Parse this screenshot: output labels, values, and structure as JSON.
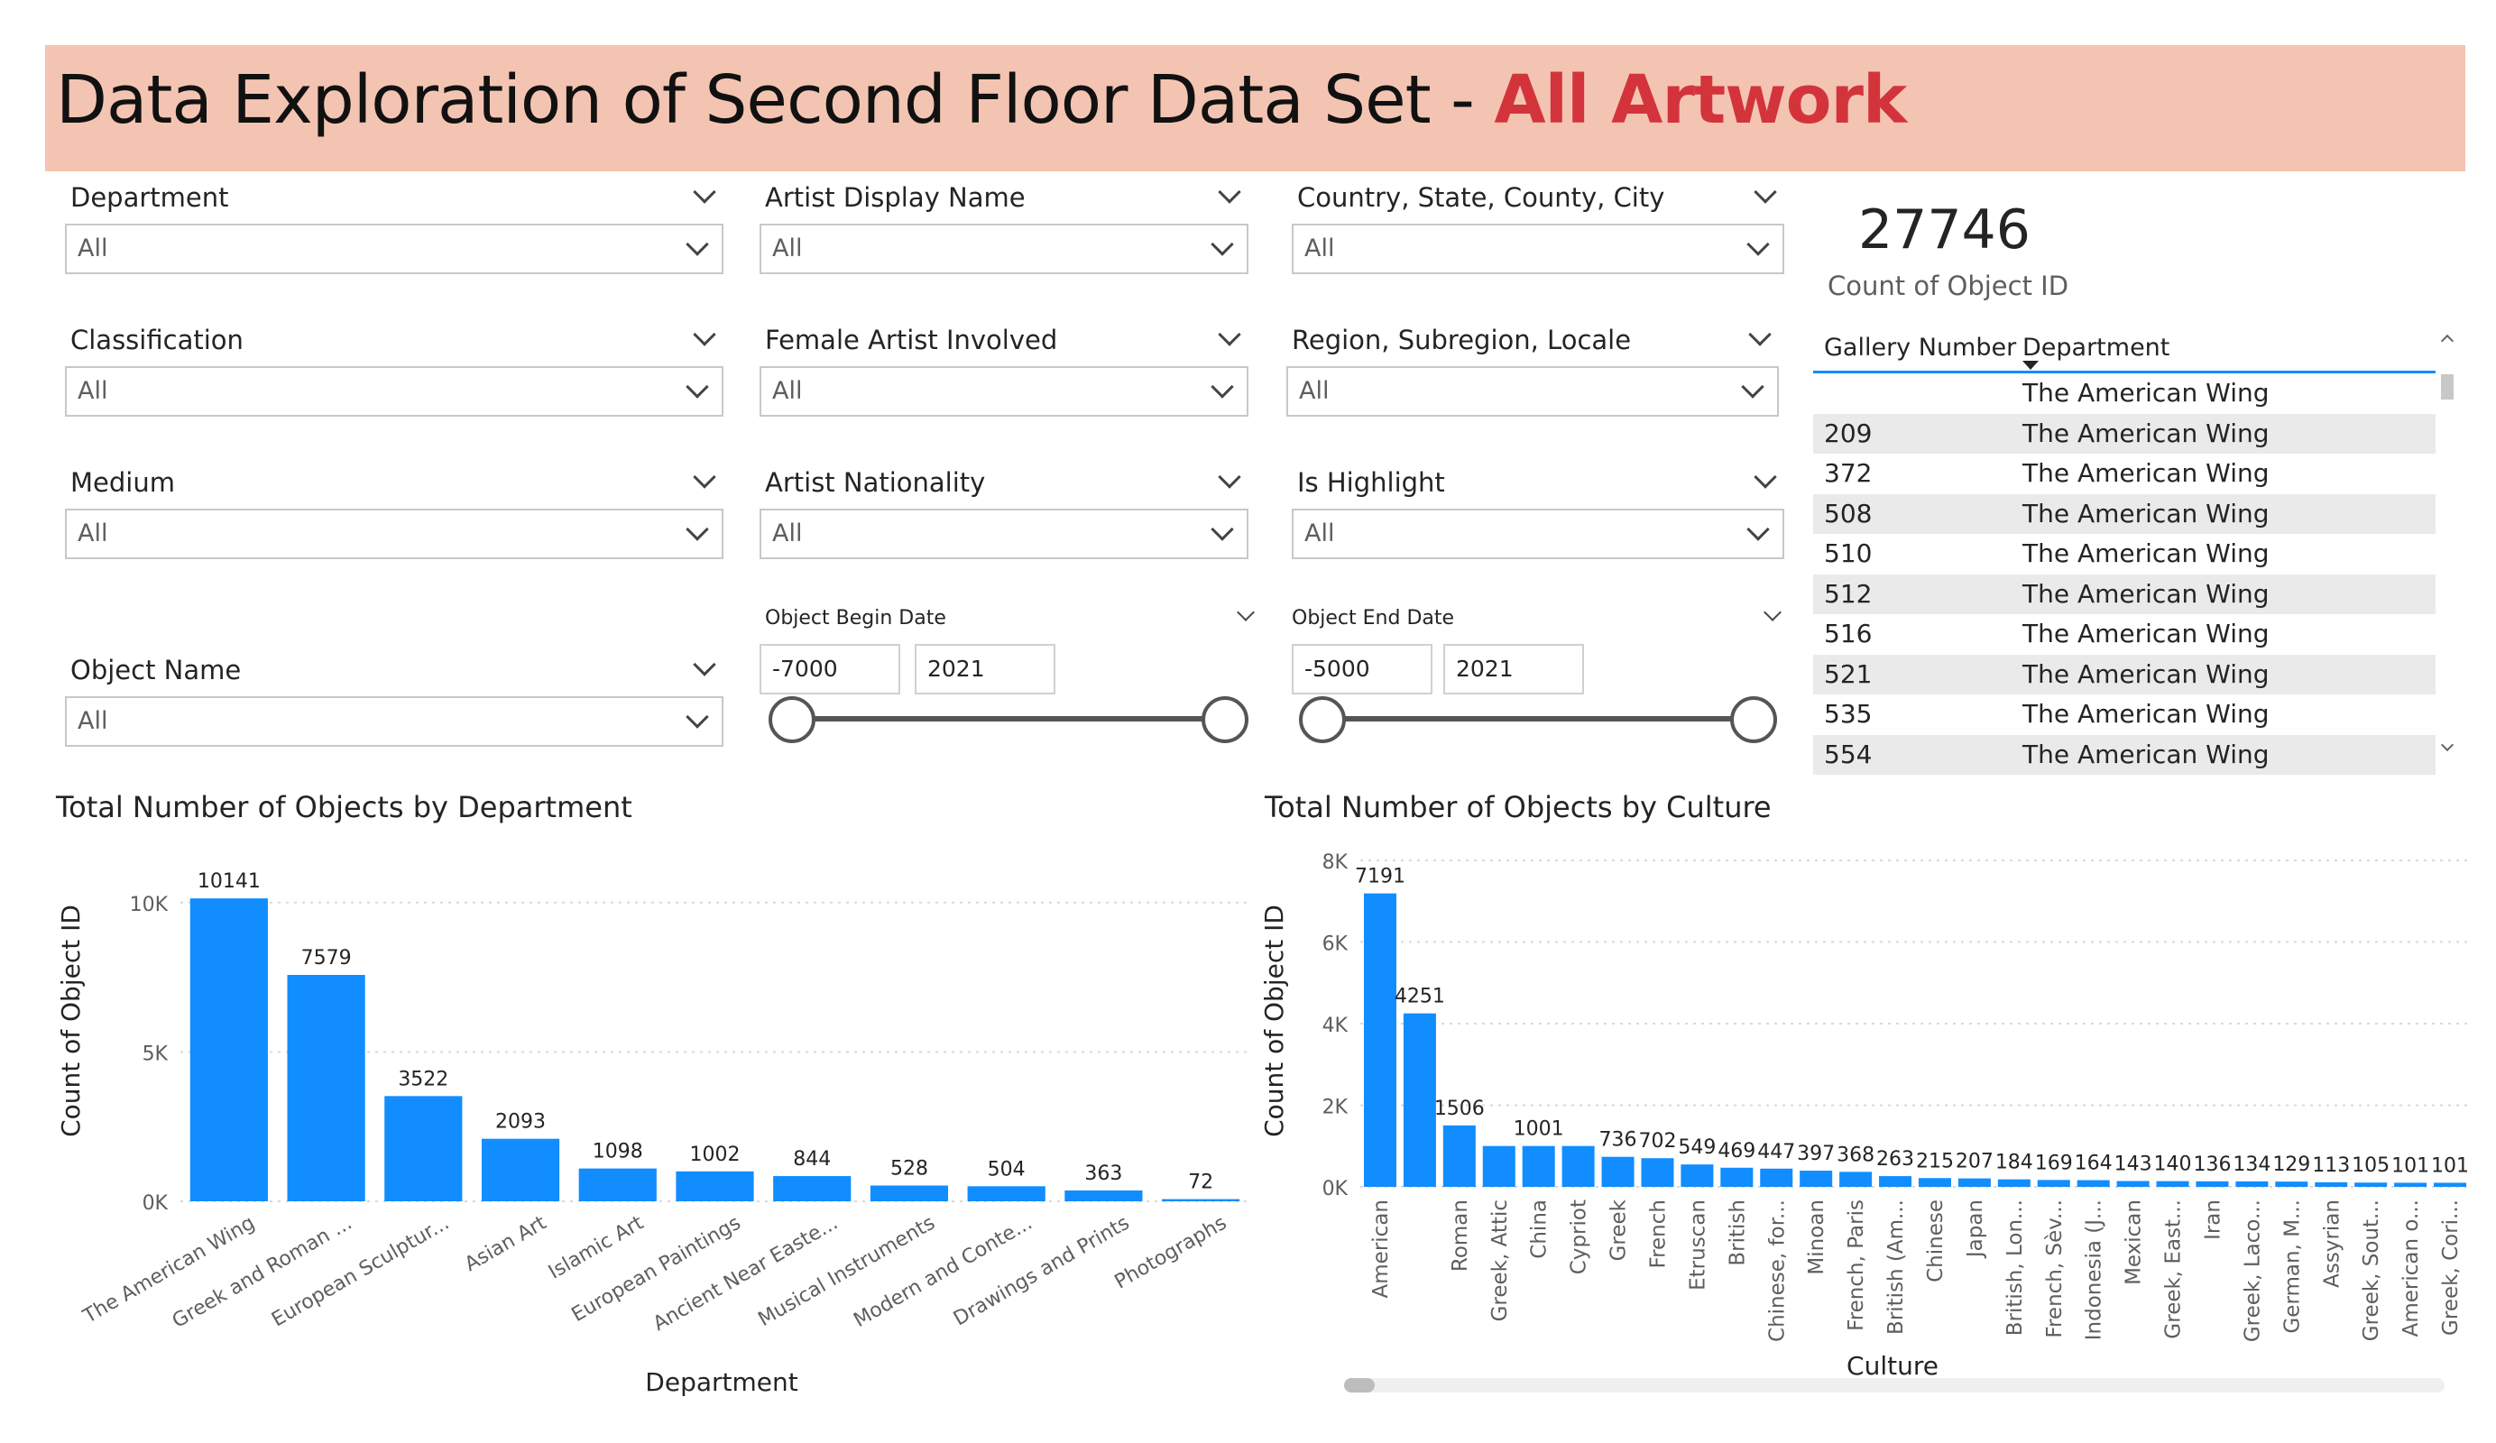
{
  "title": {
    "main": "Data Exploration of Second Floor Data Set - ",
    "accent": "All Artwork"
  },
  "slicers": {
    "department": {
      "label": "Department",
      "value": "All"
    },
    "artist_display_name": {
      "label": "Artist Display Name",
      "value": "All"
    },
    "location": {
      "label": "Country, State, County, City",
      "value": "All"
    },
    "classification": {
      "label": "Classification",
      "value": "All"
    },
    "female_artist": {
      "label": "Female Artist Involved",
      "value": "All"
    },
    "region": {
      "label": "Region, Subregion, Locale",
      "value": "All"
    },
    "medium": {
      "label": "Medium",
      "value": "All"
    },
    "artist_nationality": {
      "label": "Artist Nationality",
      "value": "All"
    },
    "is_highlight": {
      "label": "Is Highlight",
      "value": "All"
    },
    "object_name": {
      "label": "Object Name",
      "value": "All"
    }
  },
  "date_slicers": {
    "begin": {
      "label": "Object Begin Date",
      "from": "-7000",
      "to": "2021"
    },
    "end": {
      "label": "Object End Date",
      "from": "-5000",
      "to": "2021"
    }
  },
  "kpi": {
    "value": "27746",
    "label": "Count of Object ID"
  },
  "gallery_table": {
    "headers": [
      "Gallery Number",
      "Department"
    ],
    "rows": [
      [
        "",
        "The American Wing"
      ],
      [
        "209",
        "The American Wing"
      ],
      [
        "372",
        "The American Wing"
      ],
      [
        "508",
        "The American Wing"
      ],
      [
        "510",
        "The American Wing"
      ],
      [
        "512",
        "The American Wing"
      ],
      [
        "516",
        "The American Wing"
      ],
      [
        "521",
        "The American Wing"
      ],
      [
        "535",
        "The American Wing"
      ],
      [
        "554",
        "The American Wing"
      ]
    ]
  },
  "colors": {
    "bar": "#118dff",
    "banner": "#f4c4b2",
    "accent": "#d3343c"
  },
  "chart_data": [
    {
      "type": "bar",
      "title": "Total Number of Objects by Department",
      "xlabel": "Department",
      "ylabel": "Count of Object ID",
      "ylim": [
        0,
        10500
      ],
      "yticks": [
        0,
        5000,
        10000
      ],
      "ytick_labels": [
        "0K",
        "5K",
        "10K"
      ],
      "grid": true,
      "categories": [
        "The American Wing",
        "Greek and Roman ...",
        "European Sculptur...",
        "Asian Art",
        "Islamic Art",
        "European Paintings",
        "Ancient Near Easte...",
        "Musical Instruments",
        "Modern and Conte...",
        "Drawings and Prints",
        "Photographs"
      ],
      "values": [
        10141,
        7579,
        3522,
        2093,
        1098,
        1002,
        844,
        528,
        504,
        363,
        72
      ]
    },
    {
      "type": "bar",
      "title": "Total Number of Objects by Culture",
      "xlabel": "Culture",
      "ylabel": "Count of Object ID",
      "ylim": [
        0,
        8000
      ],
      "yticks": [
        0,
        2000,
        4000,
        6000,
        8000
      ],
      "ytick_labels": [
        "0K",
        "2K",
        "4K",
        "6K",
        "8K"
      ],
      "grid": true,
      "categories": [
        "American",
        "",
        "Roman",
        "Greek, Attic",
        "China",
        "Cypriot",
        "Greek",
        "French",
        "Etruscan",
        "British",
        "Chinese, for...",
        "Minoan",
        "French, Paris",
        "British (Am...",
        "Chinese",
        "Japan",
        "British, Lon...",
        "French, Sèv...",
        "Indonesia (J...",
        "Mexican",
        "Greek, East...",
        "Iran",
        "Greek, Laco...",
        "German, M...",
        "Assyrian",
        "Greek, Sout...",
        "American o...",
        "Greek, Cori..."
      ],
      "values": [
        7191,
        4251,
        1506,
        1001,
        1001,
        1001,
        736,
        702,
        549,
        469,
        447,
        397,
        368,
        263,
        215,
        207,
        184,
        169,
        164,
        143,
        140,
        136,
        134,
        129,
        113,
        105,
        101,
        101
      ],
      "data_labels": [
        "7191",
        "4251",
        "1506",
        "",
        "1001",
        "",
        "736",
        "702",
        "549",
        "469",
        "447",
        "397",
        "368",
        "263",
        "215",
        "207",
        "184",
        "169",
        "164",
        "143",
        "140",
        "136",
        "134",
        "129",
        "113",
        "105",
        "101",
        "101"
      ]
    }
  ]
}
